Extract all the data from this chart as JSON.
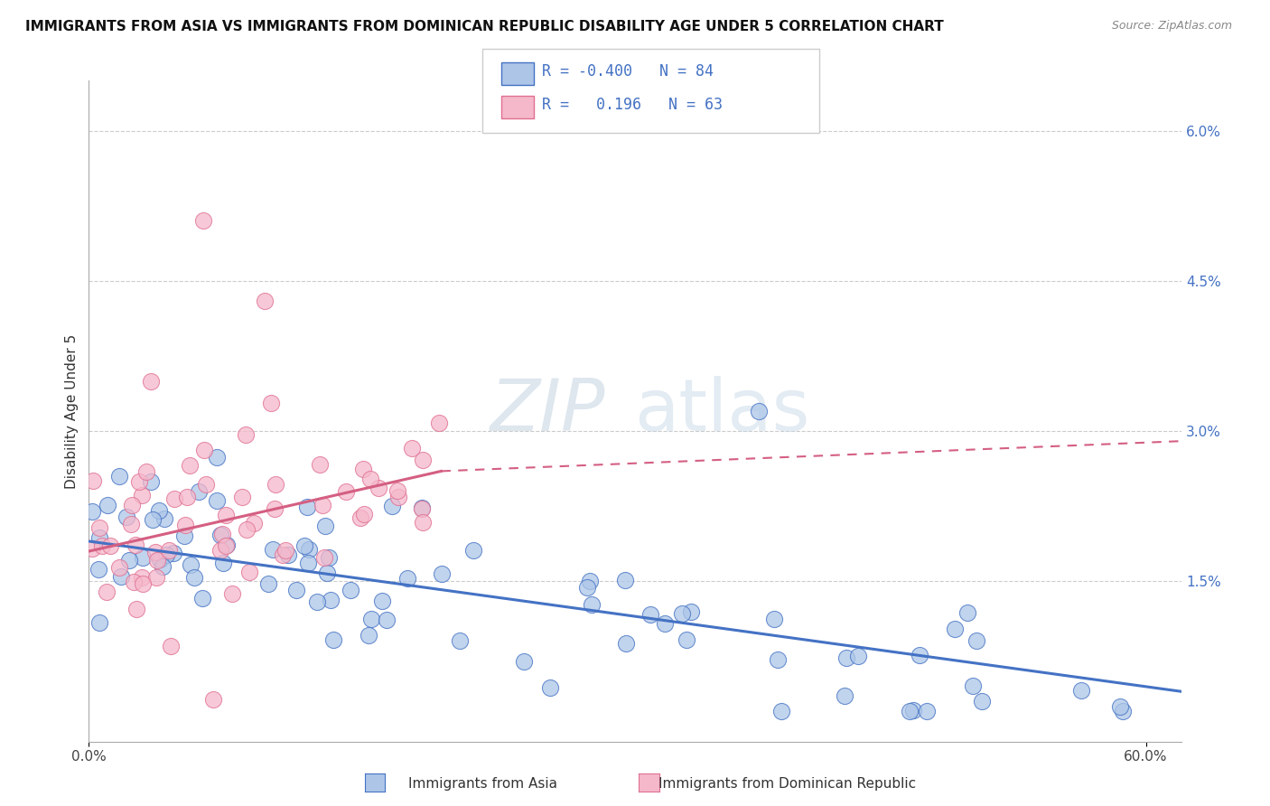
{
  "title": "IMMIGRANTS FROM ASIA VS IMMIGRANTS FROM DOMINICAN REPUBLIC DISABILITY AGE UNDER 5 CORRELATION CHART",
  "source": "Source: ZipAtlas.com",
  "ylabel": "Disability Age Under 5",
  "xlim": [
    0.0,
    0.62
  ],
  "ylim": [
    -0.001,
    0.065
  ],
  "right_yticks": [
    0.0,
    0.015,
    0.03,
    0.045,
    0.06
  ],
  "right_yticklabels": [
    "",
    "1.5%",
    "3.0%",
    "4.5%",
    "6.0%"
  ],
  "color_asia_fill": "#adc6e8",
  "color_asia_edge": "#4472c4",
  "color_dr_fill": "#f5b8cb",
  "color_dr_edge": "#e07090",
  "color_asia_line": "#4472c4",
  "color_dr_line": "#d45f82",
  "color_text_blue": "#4472c4",
  "watermark_zip": "ZIP",
  "watermark_atlas": "atlas",
  "asia_trend_x0": 0.0,
  "asia_trend_y0": 0.019,
  "asia_trend_x1": 0.62,
  "asia_trend_y1": 0.004,
  "dr_trend_solid_x0": 0.0,
  "dr_trend_solid_y0": 0.018,
  "dr_trend_solid_x1": 0.2,
  "dr_trend_solid_y1": 0.026,
  "dr_trend_dash_x0": 0.2,
  "dr_trend_dash_y0": 0.026,
  "dr_trend_dash_x1": 0.62,
  "dr_trend_dash_y1": 0.029,
  "legend_r1": "R = -0.400",
  "legend_n1": "N = 84",
  "legend_r2": "R =   0.196",
  "legend_n2": "N = 63"
}
